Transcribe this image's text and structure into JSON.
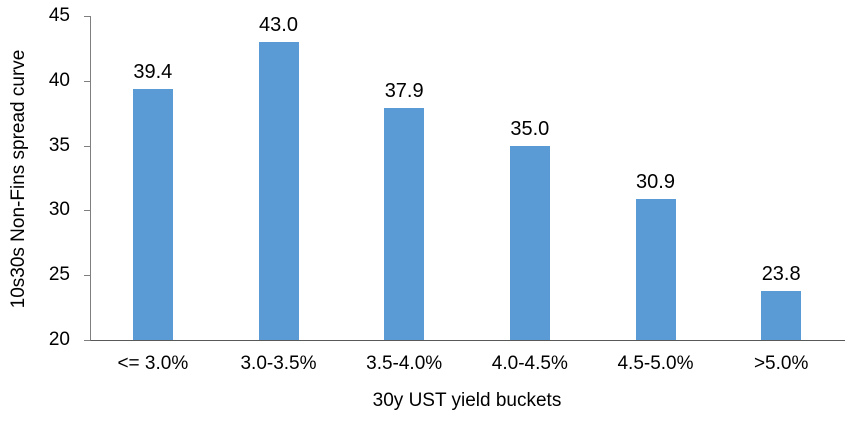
{
  "chart_data": {
    "type": "bar",
    "title": "",
    "categories": [
      "<= 3.0%",
      "3.0-3.5%",
      "3.5-4.0%",
      "4.0-4.5%",
      "4.5-5.0%",
      ">5.0%"
    ],
    "values": [
      39.4,
      43.0,
      37.9,
      35.0,
      30.9,
      23.8
    ],
    "data_labels": [
      "39.4",
      "43.0",
      "37.9",
      "35.0",
      "30.9",
      "23.8"
    ],
    "xlabel": "30y UST yield buckets",
    "ylabel": "10s30s Non-Fins spread curve",
    "ylim": [
      20,
      45
    ],
    "yticks": [
      20,
      25,
      30,
      35,
      40,
      45
    ],
    "grid": false,
    "legend": "none",
    "bar_color": "#5B9BD5",
    "axis_line_color": "#595959",
    "text_color": "#000000",
    "background": "#FFFFFF"
  }
}
